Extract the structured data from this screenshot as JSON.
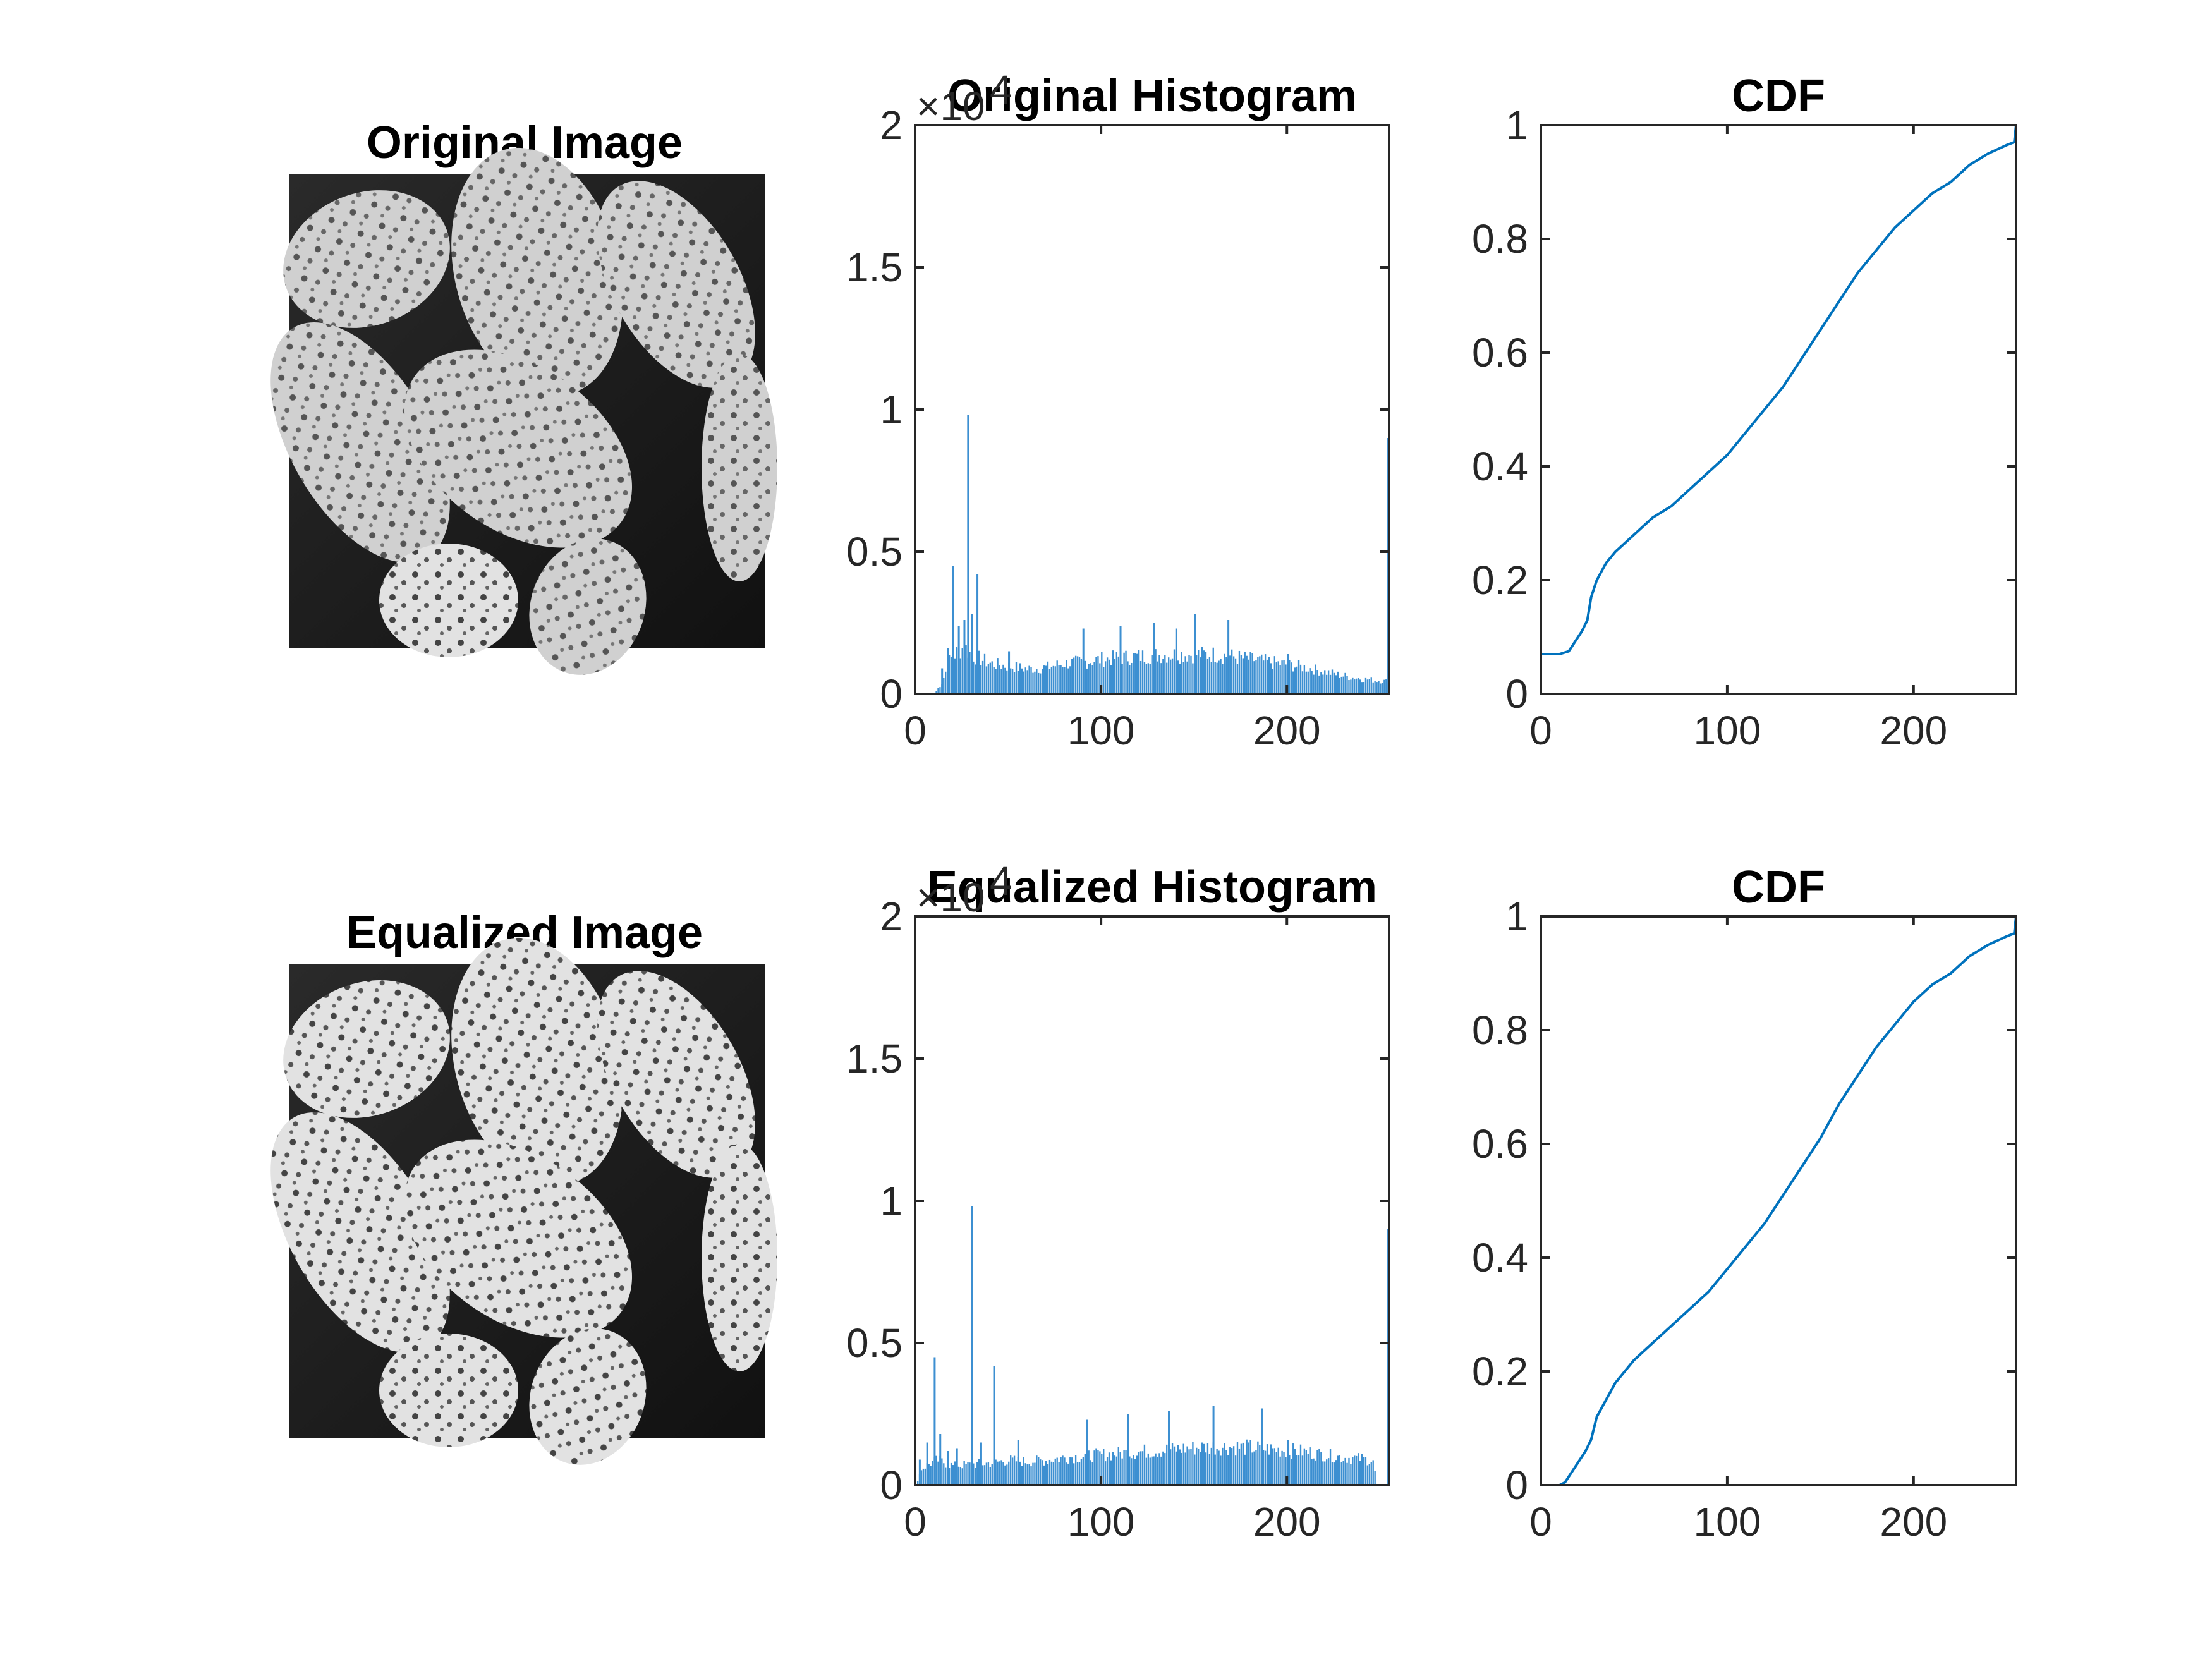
{
  "figure": {
    "background": "#ffffff",
    "series_color": "#0072bd",
    "bar_color": "#3c8fd1"
  },
  "chart_data": [
    {
      "id": "original_image",
      "type": "image",
      "title": "Original Image",
      "description_icon": "grayscale-pollen-image"
    },
    {
      "id": "original_hist",
      "type": "bar",
      "title": "Original Histogram",
      "xlabel": "",
      "ylabel": "",
      "xlim": [
        0,
        255
      ],
      "ylim": [
        0,
        20000
      ],
      "xticks": [
        0,
        100,
        200
      ],
      "yticks": [
        0,
        5000,
        10000,
        15000,
        20000
      ],
      "ytick_labels": [
        "0",
        "0.5",
        "1",
        "1.5",
        "2"
      ],
      "exponent_label": "×10",
      "exponent_power": "4",
      "peaks": [
        [
          14,
          900
        ],
        [
          17,
          1600
        ],
        [
          20,
          4500
        ],
        [
          23,
          2400
        ],
        [
          26,
          2600
        ],
        [
          28,
          9800
        ],
        [
          30,
          2800
        ],
        [
          33,
          4200
        ],
        [
          50,
          1500
        ],
        [
          90,
          2300
        ],
        [
          110,
          2400
        ],
        [
          128,
          2500
        ],
        [
          140,
          2300
        ],
        [
          150,
          2800
        ],
        [
          168,
          2600
        ],
        [
          200,
          1400
        ],
        [
          254,
          9000
        ]
      ],
      "envelope": [
        [
          0,
          0
        ],
        [
          10,
          0
        ],
        [
          14,
          400
        ],
        [
          18,
          1200
        ],
        [
          22,
          1500
        ],
        [
          26,
          1700
        ],
        [
          30,
          1400
        ],
        [
          40,
          1100
        ],
        [
          50,
          1000
        ],
        [
          60,
          900
        ],
        [
          70,
          950
        ],
        [
          80,
          1100
        ],
        [
          90,
          1150
        ],
        [
          100,
          1250
        ],
        [
          110,
          1300
        ],
        [
          120,
          1350
        ],
        [
          130,
          1400
        ],
        [
          140,
          1420
        ],
        [
          150,
          1430
        ],
        [
          160,
          1420
        ],
        [
          170,
          1350
        ],
        [
          180,
          1250
        ],
        [
          190,
          1150
        ],
        [
          200,
          1050
        ],
        [
          210,
          950
        ],
        [
          220,
          800
        ],
        [
          230,
          650
        ],
        [
          240,
          550
        ],
        [
          250,
          480
        ],
        [
          253,
          450
        ]
      ]
    },
    {
      "id": "original_cdf",
      "type": "line",
      "title": "CDF",
      "xlabel": "",
      "ylabel": "",
      "xlim": [
        0,
        255
      ],
      "ylim": [
        0,
        1
      ],
      "xticks": [
        0,
        100,
        200
      ],
      "yticks": [
        0,
        0.2,
        0.4,
        0.6,
        0.8,
        1
      ],
      "ytick_labels": [
        "0",
        "0.2",
        "0.4",
        "0.6",
        "0.8",
        "1"
      ],
      "points": [
        [
          0,
          0.07
        ],
        [
          10,
          0.07
        ],
        [
          15,
          0.075
        ],
        [
          18,
          0.09
        ],
        [
          22,
          0.11
        ],
        [
          25,
          0.13
        ],
        [
          27,
          0.17
        ],
        [
          30,
          0.2
        ],
        [
          35,
          0.23
        ],
        [
          40,
          0.25
        ],
        [
          50,
          0.28
        ],
        [
          60,
          0.31
        ],
        [
          70,
          0.33
        ],
        [
          80,
          0.36
        ],
        [
          90,
          0.39
        ],
        [
          100,
          0.42
        ],
        [
          110,
          0.46
        ],
        [
          120,
          0.5
        ],
        [
          130,
          0.54
        ],
        [
          140,
          0.59
        ],
        [
          150,
          0.64
        ],
        [
          160,
          0.69
        ],
        [
          170,
          0.74
        ],
        [
          180,
          0.78
        ],
        [
          190,
          0.82
        ],
        [
          200,
          0.85
        ],
        [
          210,
          0.88
        ],
        [
          220,
          0.9
        ],
        [
          230,
          0.93
        ],
        [
          240,
          0.95
        ],
        [
          250,
          0.965
        ],
        [
          254,
          0.97
        ],
        [
          255,
          1.0
        ]
      ]
    },
    {
      "id": "equalized_image",
      "type": "image",
      "title": "Equalized Image",
      "description_icon": "grayscale-pollen-image"
    },
    {
      "id": "equalized_hist",
      "type": "bar",
      "title": "Equalized Histogram",
      "xlabel": "",
      "ylabel": "",
      "xlim": [
        0,
        255
      ],
      "ylim": [
        0,
        20000
      ],
      "xticks": [
        0,
        100,
        200
      ],
      "yticks": [
        0,
        5000,
        10000,
        15000,
        20000
      ],
      "ytick_labels": [
        "0",
        "0.5",
        "1",
        "1.5",
        "2"
      ],
      "exponent_label": "×10",
      "exponent_power": "4",
      "peaks": [
        [
          2,
          900
        ],
        [
          6,
          1500
        ],
        [
          10,
          4500
        ],
        [
          13,
          1800
        ],
        [
          17,
          1200
        ],
        [
          22,
          1300
        ],
        [
          30,
          9800
        ],
        [
          35,
          1500
        ],
        [
          42,
          4200
        ],
        [
          55,
          1600
        ],
        [
          92,
          2300
        ],
        [
          114,
          2500
        ],
        [
          136,
          2600
        ],
        [
          160,
          2800
        ],
        [
          186,
          2700
        ],
        [
          200,
          1600
        ],
        [
          254,
          9000
        ]
      ],
      "envelope": [
        [
          0,
          0
        ],
        [
          3,
          600
        ],
        [
          8,
          800
        ],
        [
          12,
          900
        ],
        [
          20,
          700
        ],
        [
          40,
          800
        ],
        [
          50,
          900
        ],
        [
          60,
          850
        ],
        [
          70,
          900
        ],
        [
          80,
          1000
        ],
        [
          90,
          1050
        ],
        [
          100,
          1100
        ],
        [
          110,
          1150
        ],
        [
          120,
          1200
        ],
        [
          130,
          1250
        ],
        [
          140,
          1300
        ],
        [
          150,
          1350
        ],
        [
          160,
          1380
        ],
        [
          170,
          1380
        ],
        [
          180,
          1350
        ],
        [
          190,
          1300
        ],
        [
          200,
          1250
        ],
        [
          210,
          1200
        ],
        [
          220,
          1100
        ],
        [
          230,
          1000
        ],
        [
          240,
          950
        ],
        [
          246,
          900
        ],
        [
          248,
          0
        ]
      ]
    },
    {
      "id": "equalized_cdf",
      "type": "line",
      "title": "CDF",
      "xlabel": "",
      "ylabel": "",
      "xlim": [
        0,
        255
      ],
      "ylim": [
        0,
        1
      ],
      "xticks": [
        0,
        100,
        200
      ],
      "yticks": [
        0,
        0.2,
        0.4,
        0.6,
        0.8,
        1
      ],
      "ytick_labels": [
        "0",
        "0.2",
        "0.4",
        "0.6",
        "0.8",
        "1"
      ],
      "points": [
        [
          0,
          0
        ],
        [
          10,
          0
        ],
        [
          13,
          0.005
        ],
        [
          16,
          0.02
        ],
        [
          20,
          0.04
        ],
        [
          24,
          0.06
        ],
        [
          27,
          0.08
        ],
        [
          30,
          0.12
        ],
        [
          35,
          0.15
        ],
        [
          40,
          0.18
        ],
        [
          50,
          0.22
        ],
        [
          60,
          0.25
        ],
        [
          70,
          0.28
        ],
        [
          80,
          0.31
        ],
        [
          90,
          0.34
        ],
        [
          100,
          0.38
        ],
        [
          110,
          0.42
        ],
        [
          120,
          0.46
        ],
        [
          130,
          0.51
        ],
        [
          140,
          0.56
        ],
        [
          150,
          0.61
        ],
        [
          160,
          0.67
        ],
        [
          170,
          0.72
        ],
        [
          180,
          0.77
        ],
        [
          190,
          0.81
        ],
        [
          200,
          0.85
        ],
        [
          210,
          0.88
        ],
        [
          220,
          0.9
        ],
        [
          230,
          0.93
        ],
        [
          240,
          0.95
        ],
        [
          250,
          0.965
        ],
        [
          254,
          0.97
        ],
        [
          255,
          1.0
        ]
      ]
    }
  ]
}
